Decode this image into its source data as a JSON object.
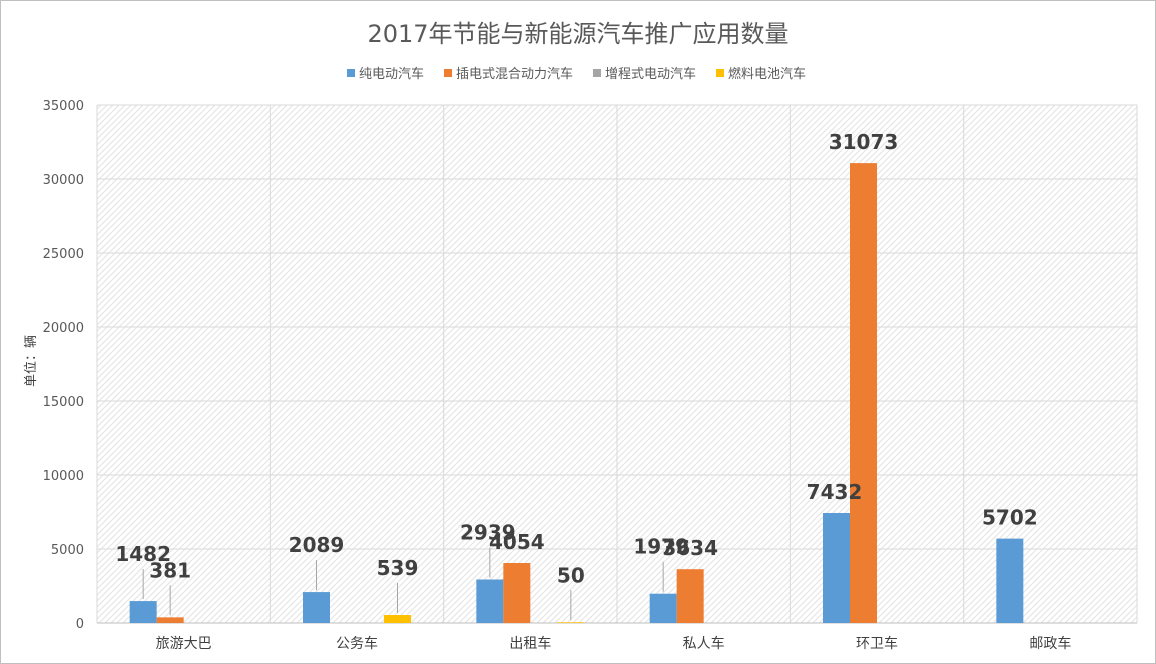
{
  "chart_data": {
    "type": "bar",
    "title": "2017年节能与新能源汽车推广应用数量",
    "ylabel": "单位：辆",
    "xlabel": "",
    "ylim": [
      0,
      35000
    ],
    "yticks": [
      0,
      5000,
      10000,
      15000,
      20000,
      25000,
      30000,
      35000
    ],
    "grid": true,
    "legend_position": "top",
    "categories": [
      "旅游大巴",
      "公务车",
      "出租车",
      "私人车",
      "环卫车",
      "邮政车"
    ],
    "series": [
      {
        "name": "纯电动汽车",
        "color": "#5b9bd5",
        "values": [
          1482,
          2089,
          2939,
          1979,
          7432,
          5702
        ]
      },
      {
        "name": "插电式混合动力汽车",
        "color": "#ed7d31",
        "values": [
          381,
          null,
          4054,
          3634,
          31073,
          null
        ]
      },
      {
        "name": "增程式电动汽车",
        "color": "#a5a5a5",
        "values": [
          null,
          null,
          null,
          null,
          null,
          null
        ]
      },
      {
        "name": "燃料电池汽车",
        "color": "#ffc000",
        "values": [
          null,
          539,
          50,
          null,
          null,
          null
        ]
      }
    ]
  }
}
